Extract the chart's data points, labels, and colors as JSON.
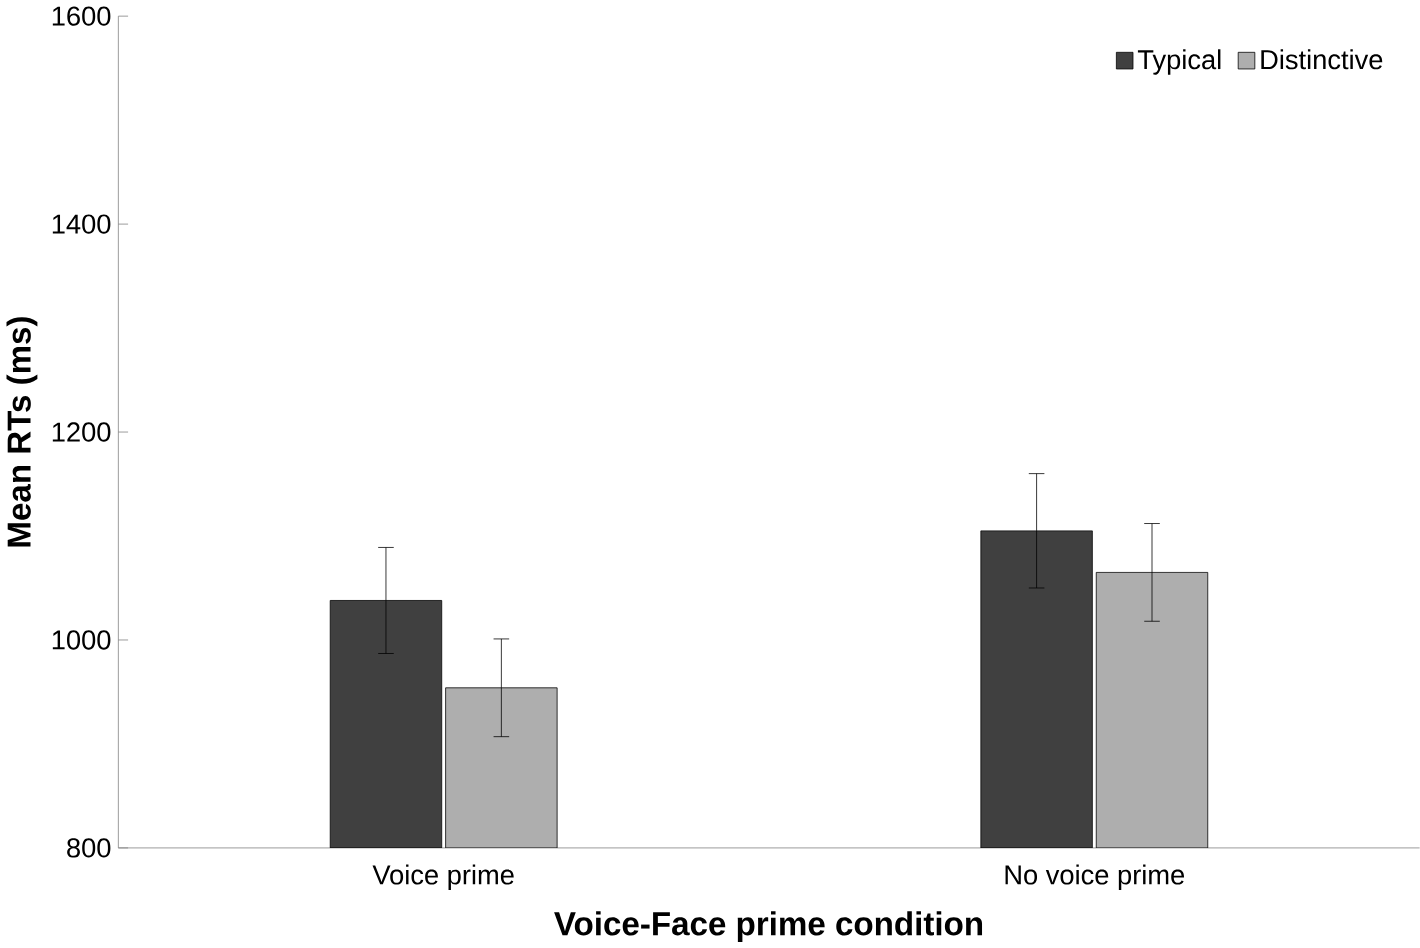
{
  "chart_data": {
    "type": "bar",
    "xlabel": "Voice-Face prime condition",
    "ylabel": "Mean RTs (ms)",
    "categories": [
      "Voice prime",
      "No voice prime"
    ],
    "series": [
      {
        "name": "Typical",
        "color": "#404040",
        "values": [
          1038,
          1105
        ],
        "errors": [
          51,
          55
        ]
      },
      {
        "name": "Distinctive",
        "color": "#aeaeae",
        "values": [
          954,
          1065
        ],
        "errors": [
          47,
          47
        ]
      }
    ],
    "ylim": [
      800,
      1600
    ],
    "yticks": [
      800,
      1000,
      1200,
      1400,
      1600
    ],
    "grid": false,
    "legend": "top right"
  }
}
